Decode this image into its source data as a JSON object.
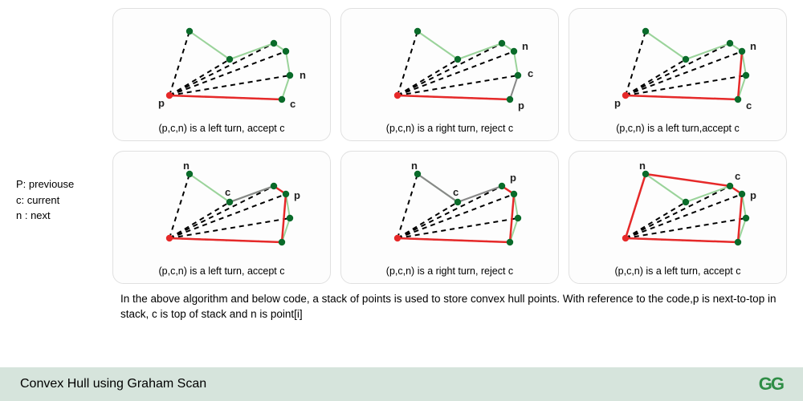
{
  "colors": {
    "panel_border": "#e0e0e0",
    "panel_bg": "#fdfdfd",
    "footer_bg": "#d6e4dc",
    "logo_color": "#2f8d46",
    "point_fill": "#0a6b2a",
    "origin_fill": "#e62929",
    "hull_red": "#e62929",
    "edge_green": "#9ad39a",
    "edge_gray": "#888888",
    "dash": "#000000",
    "text": "#222222"
  },
  "geometry": {
    "points": {
      "origin": [
        55,
        100
      ],
      "a": [
        80,
        20
      ],
      "b": [
        130,
        55
      ],
      "c": [
        185,
        35
      ],
      "d": [
        200,
        45
      ],
      "e": [
        205,
        75
      ],
      "f": [
        195,
        105
      ]
    },
    "fan_to": [
      "a",
      "b",
      "c",
      "d",
      "e",
      "f"
    ],
    "point_r": 4.2,
    "stroke_w": 2,
    "dash_pattern": "6,5"
  },
  "legend": {
    "p": "P: previouse",
    "c": "c: current",
    "n": "n : next"
  },
  "panels": [
    {
      "caption": "(p,c,n) is a left turn, accept c",
      "red_path": [
        "origin",
        "f"
      ],
      "green_edges": [
        [
          "a",
          "b"
        ],
        [
          "b",
          "c"
        ],
        [
          "c",
          "d"
        ],
        [
          "d",
          "e"
        ],
        [
          "e",
          "f"
        ]
      ],
      "gray_edges": [],
      "labels": {
        "p": [
          "origin",
          -14,
          14
        ],
        "c": [
          "f",
          10,
          10
        ],
        "n": [
          "e",
          12,
          4
        ]
      }
    },
    {
      "caption": "(p,c,n) is a right turn, reject c",
      "red_path": [
        "origin",
        "f"
      ],
      "green_edges": [
        [
          "a",
          "b"
        ],
        [
          "b",
          "c"
        ],
        [
          "c",
          "d"
        ],
        [
          "d",
          "e"
        ]
      ],
      "gray_edges": [
        [
          "f",
          "e"
        ]
      ],
      "labels": {
        "p": [
          "f",
          10,
          12
        ],
        "c": [
          "e",
          12,
          2
        ],
        "n": [
          "d",
          10,
          -2
        ]
      }
    },
    {
      "caption": "(p,c,n) is a left turn,accept c",
      "red_path": [
        "origin",
        "f",
        "d"
      ],
      "green_edges": [
        [
          "a",
          "b"
        ],
        [
          "b",
          "c"
        ],
        [
          "c",
          "d"
        ],
        [
          "d",
          "e"
        ],
        [
          "e",
          "f"
        ]
      ],
      "gray_edges": [],
      "labels": {
        "p": [
          "origin",
          -14,
          14
        ],
        "c": [
          "f",
          10,
          12
        ],
        "n": [
          "d",
          10,
          -2
        ]
      }
    },
    {
      "caption": "(p,c,n) is a left turn, accept c",
      "red_path": [
        "origin",
        "f",
        "d",
        "c"
      ],
      "green_edges": [
        [
          "a",
          "b"
        ],
        [
          "b",
          "c"
        ],
        [
          "d",
          "e"
        ],
        [
          "e",
          "f"
        ]
      ],
      "gray_edges": [
        [
          "c",
          "b"
        ]
      ],
      "labels": {
        "p": [
          "d",
          10,
          6
        ],
        "c": [
          "b",
          -6,
          -8
        ],
        "n": [
          "a",
          -8,
          -6
        ]
      }
    },
    {
      "caption": "(p,c,n) is a right turn, reject c",
      "red_path": [
        "origin",
        "f",
        "d",
        "c"
      ],
      "green_edges": [
        [
          "a",
          "b"
        ],
        [
          "d",
          "e"
        ],
        [
          "e",
          "f"
        ]
      ],
      "gray_edges": [
        [
          "c",
          "b"
        ],
        [
          "b",
          "a"
        ]
      ],
      "labels": {
        "p": [
          "c",
          10,
          -6
        ],
        "c": [
          "b",
          -6,
          -8
        ],
        "n": [
          "a",
          -8,
          -6
        ]
      }
    },
    {
      "caption": "(p,c,n) is a left turn, accept c",
      "red_path": [
        "origin",
        "f",
        "d",
        "c",
        "a",
        "origin"
      ],
      "green_edges": [
        [
          "a",
          "b"
        ],
        [
          "b",
          "c"
        ],
        [
          "d",
          "e"
        ],
        [
          "e",
          "f"
        ]
      ],
      "gray_edges": [],
      "labels": {
        "p": [
          "d",
          10,
          6
        ],
        "c": [
          "c",
          6,
          -8
        ],
        "n": [
          "a",
          -8,
          -6
        ]
      }
    }
  ],
  "explain": "In the above algorithm and below code, a stack of points is used to store convex hull points. With reference to the code,p is next-to-top in stack, c is top of stack and n is point[i]",
  "footer": {
    "title": "Convex Hull using Graham Scan",
    "logo": "GG"
  }
}
